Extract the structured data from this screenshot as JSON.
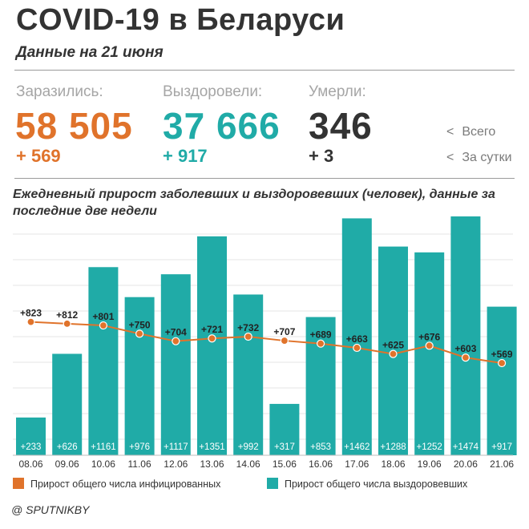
{
  "header": {
    "title": "COVID-19 в Беларуси",
    "subtitle": "Данные на 21 июня"
  },
  "stats": {
    "infected": {
      "label": "Заразились:",
      "total": "58 505",
      "delta": "+ 569",
      "color": "#e0732b"
    },
    "recovered": {
      "label": "Выздоровели:",
      "total": "37 666",
      "delta": "+ 917",
      "color": "#20aba7"
    },
    "died": {
      "label": "Умерли:",
      "total": "346",
      "delta": "+ 3",
      "color": "#333333"
    }
  },
  "key": {
    "total": "Всего",
    "daily": "За сутки"
  },
  "source": "@ SPUTNIKBY",
  "chart_data": {
    "type": "bar",
    "title": "Ежедневный прирост заболевших и выздоровевших (человек), данные за последние две недели",
    "categories": [
      "08.06",
      "09.06",
      "10.06",
      "11.06",
      "12.06",
      "13.06",
      "14.06",
      "15.06",
      "16.06",
      "17.06",
      "18.06",
      "19.06",
      "20.06",
      "21.06"
    ],
    "series": [
      {
        "name": "Прирост общего числа выздоровевших",
        "type": "bar",
        "color": "#20aba7",
        "values": [
          233,
          626,
          1161,
          976,
          1117,
          1351,
          992,
          317,
          853,
          1462,
          1288,
          1252,
          1474,
          917
        ],
        "labels": [
          "+233",
          "+626",
          "+1161",
          "+976",
          "+1117",
          "+1351",
          "+992",
          "+317",
          "+853",
          "+1462",
          "+1288",
          "+1252",
          "+1474",
          "+917"
        ]
      },
      {
        "name": "Прирост общего числа инфицированных",
        "type": "line",
        "color": "#e0732b",
        "values": [
          823,
          812,
          801,
          750,
          704,
          721,
          732,
          707,
          689,
          663,
          625,
          676,
          603,
          569
        ],
        "labels": [
          "+823",
          "+812",
          "+801",
          "+750",
          "+704",
          "+721",
          "+732",
          "+707",
          "+689",
          "+663",
          "+625",
          "+676",
          "+603",
          "+569"
        ]
      }
    ],
    "legend": [
      "Прирост общего числа инфицированных",
      "Прирост общего числа выздоровевших"
    ],
    "legend_position": "bottom",
    "grid": true
  }
}
